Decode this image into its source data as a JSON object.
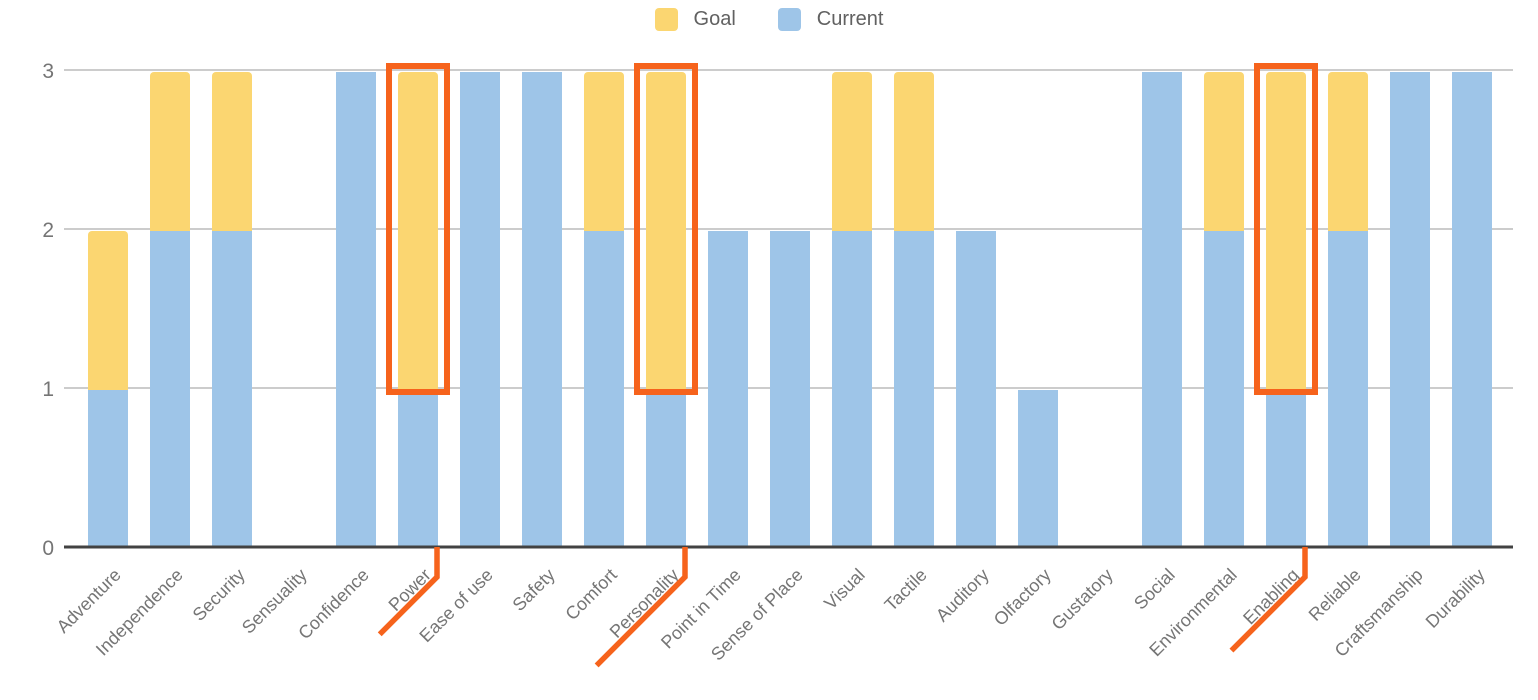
{
  "legend": {
    "goal": "Goal",
    "current": "Current"
  },
  "colors": {
    "goal": "#FBD671",
    "current": "#9EC5E8",
    "highlight": "#F6631C",
    "grid": "#CCCCCC",
    "axis": "#424242",
    "tick_label": "#757575",
    "legend_text": "#616161"
  },
  "chart_data": {
    "type": "bar",
    "title": "",
    "xlabel": "",
    "ylabel": "",
    "categories": [
      "Adventure",
      "Independence",
      "Security",
      "Sensuality",
      "Confidence",
      "Power",
      "Ease of use",
      "Safety",
      "Comfort",
      "Personality",
      "Point in Time",
      "Sense of Place",
      "Visual",
      "Tactile",
      "Auditory",
      "Olfactory",
      "Gustatory",
      "Social",
      "Environmental",
      "Enabling",
      "Reliable",
      "Craftsmanship",
      "Durability"
    ],
    "series": [
      {
        "name": "Goal",
        "values": [
          2,
          3,
          3,
          0,
          3,
          3,
          3,
          3,
          3,
          3,
          2,
          2,
          3,
          3,
          2,
          1,
          0,
          3,
          3,
          3,
          3,
          3,
          3
        ]
      },
      {
        "name": "Current",
        "values": [
          1,
          2,
          2,
          0,
          3,
          1,
          3,
          3,
          2,
          1,
          2,
          2,
          2,
          2,
          2,
          1,
          0,
          3,
          2,
          1,
          2,
          3,
          3
        ]
      }
    ],
    "ylim": [
      0,
      3
    ],
    "yticks": [
      0,
      1,
      2,
      3
    ],
    "grid": true,
    "legend_position": "top-center",
    "bar_style": "overlapped",
    "highlighted": [
      {
        "category": "Power",
        "boxed_range": [
          1,
          3
        ],
        "underline_len": 81
      },
      {
        "category": "Personality",
        "boxed_range": [
          1,
          3
        ],
        "underline_len": 125
      },
      {
        "category": "Enabling",
        "boxed_range": [
          1,
          3
        ],
        "underline_len": 104
      }
    ]
  }
}
